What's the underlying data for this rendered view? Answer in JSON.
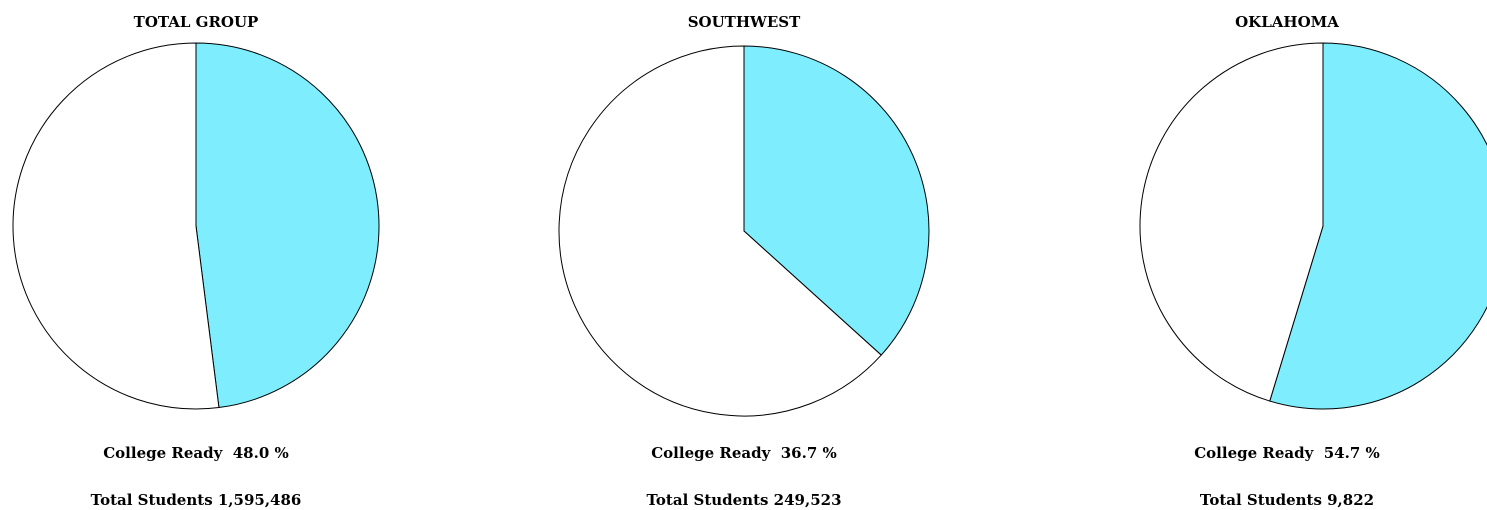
{
  "chart_data": [
    {
      "type": "pie",
      "title": "TOTAL GROUP",
      "slices": [
        {
          "label": "College Ready",
          "value": 48.0,
          "color": "#7EEDFD"
        },
        {
          "label": "",
          "value": 52.0,
          "color": "#FFFFFF"
        }
      ],
      "college_ready_text": "College Ready  48.0 %",
      "total_students_text": "Total Students 1,595,486"
    },
    {
      "type": "pie",
      "title": "SOUTHWEST",
      "slices": [
        {
          "label": "College Ready",
          "value": 36.7,
          "color": "#7EEDFD"
        },
        {
          "label": "",
          "value": 63.3,
          "color": "#FFFFFF"
        }
      ],
      "college_ready_text": "College Ready  36.7 %",
      "total_students_text": "Total Students 249,523"
    },
    {
      "type": "pie",
      "title": "OKLAHOMA",
      "slices": [
        {
          "label": "College Ready",
          "value": 54.7,
          "color": "#7EEDFD"
        },
        {
          "label": "",
          "value": 45.3,
          "color": "#FFFFFF"
        }
      ],
      "college_ready_text": "College Ready  54.7 %",
      "total_students_text": "Total Students 9,822"
    }
  ]
}
